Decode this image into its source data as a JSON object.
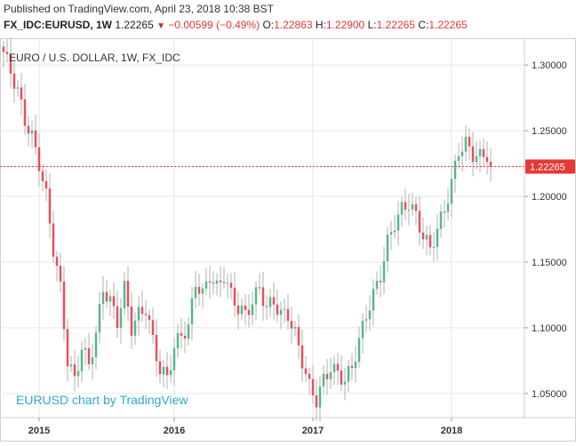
{
  "header": {
    "published": "Published on TradingView.com, April 23, 2018 10:38 BST",
    "symbol": "FX_IDC:EURUSD, 1W",
    "last": "1.22265",
    "change_icon": "triangle-down-icon",
    "change": "−0.00599 (−0.49%)",
    "o_label": "O:",
    "o_value": "1.22863",
    "h_label": "H:",
    "h_value": "1.22900",
    "l_label": "L:",
    "l_value": "1.22265",
    "c_label": "C:",
    "c_value": "1.22265"
  },
  "colors": {
    "up": "#53b987",
    "down": "#eb4d5c",
    "wick": "#b0b0b0",
    "price_line": "#e53935",
    "price_tag": "#e53935",
    "watermark": "#2ea8d8",
    "grid": "#e6e6e6"
  },
  "chart_data": {
    "type": "candlestick",
    "title": "EURO / U.S. DOLLAR, 1W, FX_IDC",
    "watermark": "EURUSD chart by TradingView",
    "interval": "1W",
    "last_price_label": "1.22265",
    "last_price": 1.22265,
    "ylim": [
      1.033,
      1.315
    ],
    "y_ticks": [
      "1.30000",
      "1.25000",
      "1.20000",
      "1.15000",
      "1.10000",
      "1.05000"
    ],
    "y_tick_values": [
      1.3,
      1.25,
      1.2,
      1.15,
      1.1,
      1.05
    ],
    "x_ticks": [
      "2015",
      "2016",
      "2017",
      "2018"
    ],
    "x_tick_index": [
      10,
      48,
      87,
      126
    ],
    "grid": true,
    "anchors": [
      [
        0,
        1.31
      ],
      [
        2,
        1.295
      ],
      [
        4,
        1.28
      ],
      [
        6,
        1.258
      ],
      [
        8,
        1.245
      ],
      [
        10,
        1.225
      ],
      [
        12,
        1.2
      ],
      [
        14,
        1.16
      ],
      [
        16,
        1.13
      ],
      [
        18,
        1.075
      ],
      [
        20,
        1.06
      ],
      [
        22,
        1.085
      ],
      [
        24,
        1.072
      ],
      [
        26,
        1.095
      ],
      [
        28,
        1.13
      ],
      [
        30,
        1.12
      ],
      [
        32,
        1.105
      ],
      [
        34,
        1.13
      ],
      [
        36,
        1.1
      ],
      [
        38,
        1.11
      ],
      [
        40,
        1.115
      ],
      [
        42,
        1.09
      ],
      [
        44,
        1.068
      ],
      [
        46,
        1.062
      ],
      [
        48,
        1.085
      ],
      [
        50,
        1.095
      ],
      [
        52,
        1.1
      ],
      [
        54,
        1.135
      ],
      [
        56,
        1.125
      ],
      [
        58,
        1.14
      ],
      [
        60,
        1.13
      ],
      [
        62,
        1.14
      ],
      [
        64,
        1.125
      ],
      [
        66,
        1.115
      ],
      [
        68,
        1.11
      ],
      [
        70,
        1.12
      ],
      [
        72,
        1.13
      ],
      [
        74,
        1.115
      ],
      [
        76,
        1.12
      ],
      [
        78,
        1.11
      ],
      [
        80,
        1.11
      ],
      [
        82,
        1.095
      ],
      [
        84,
        1.075
      ],
      [
        86,
        1.055
      ],
      [
        88,
        1.045
      ],
      [
        90,
        1.06
      ],
      [
        92,
        1.07
      ],
      [
        94,
        1.065
      ],
      [
        96,
        1.06
      ],
      [
        98,
        1.07
      ],
      [
        100,
        1.09
      ],
      [
        102,
        1.11
      ],
      [
        104,
        1.125
      ],
      [
        106,
        1.14
      ],
      [
        108,
        1.165
      ],
      [
        110,
        1.18
      ],
      [
        112,
        1.19
      ],
      [
        114,
        1.195
      ],
      [
        116,
        1.185
      ],
      [
        118,
        1.17
      ],
      [
        120,
        1.16
      ],
      [
        122,
        1.175
      ],
      [
        124,
        1.19
      ],
      [
        126,
        1.21
      ],
      [
        128,
        1.235
      ],
      [
        130,
        1.24
      ],
      [
        132,
        1.232
      ],
      [
        134,
        1.23
      ],
      [
        136,
        1.232
      ],
      [
        137,
        1.22265
      ]
    ]
  }
}
